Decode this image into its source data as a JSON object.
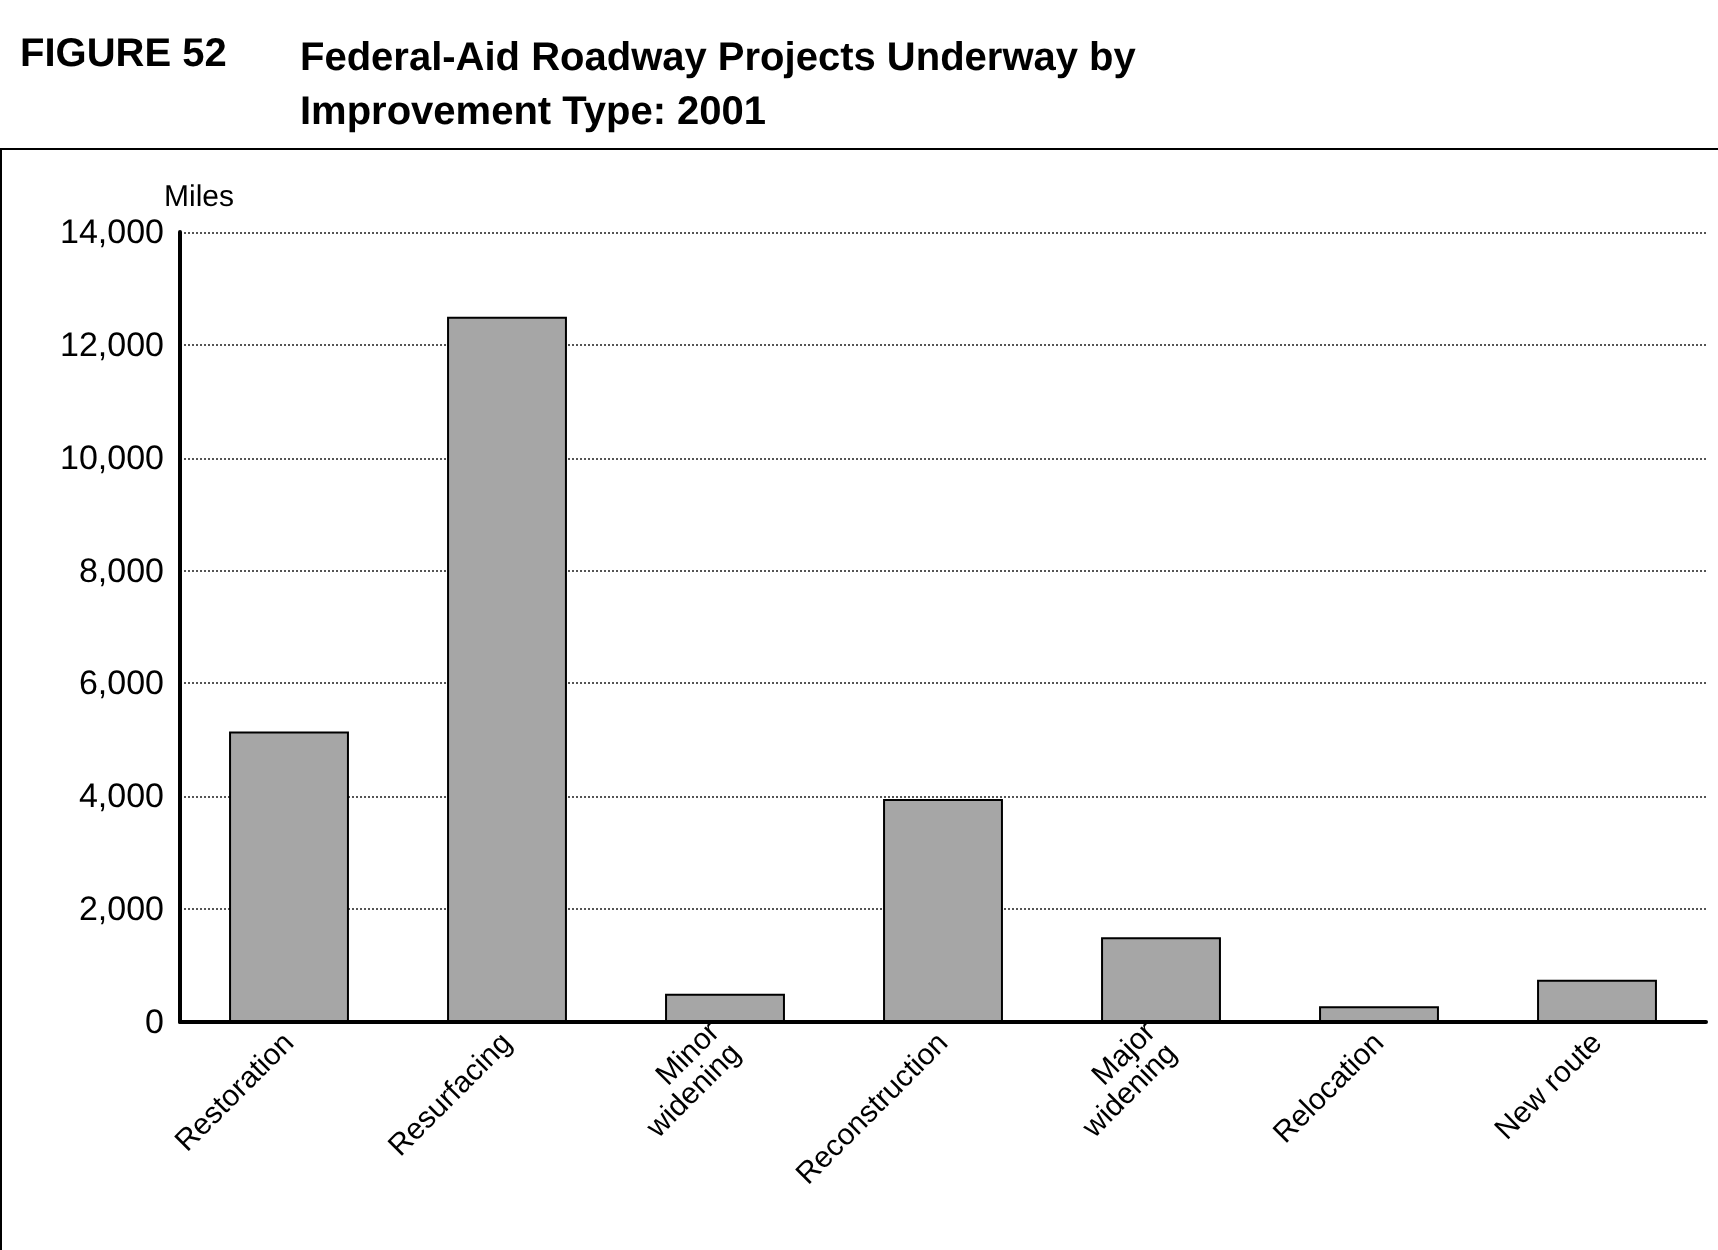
{
  "chart_data": {
    "type": "bar",
    "title": "Federal-Aid Roadway Projects Underway by Improvement Type: 2001",
    "annotations": [
      "FIGURE 52"
    ],
    "ylabel": "Miles",
    "categories": [
      "Restoration",
      "Resurfacing",
      "Minor widening",
      "Reconstruction",
      "Major widening",
      "Relocation",
      "New route"
    ],
    "values": [
      5150,
      12500,
      500,
      3950,
      1500,
      280,
      750
    ],
    "color": "#a6a6a6",
    "ylim": [
      0,
      14000
    ],
    "yticks": [
      0,
      {
        "value": 2000,
        "label": "2,000"
      },
      {
        "value": 4000,
        "label": "4,000"
      },
      {
        "value": 6000,
        "label": "6,000"
      },
      {
        "value": 8000,
        "label": "8,000"
      },
      {
        "value": 10000,
        "label": "10,000"
      },
      {
        "value": 12000,
        "label": "12,000"
      },
      {
        "value": 14000,
        "label": "14,000"
      }
    ],
    "grid": "y"
  }
}
